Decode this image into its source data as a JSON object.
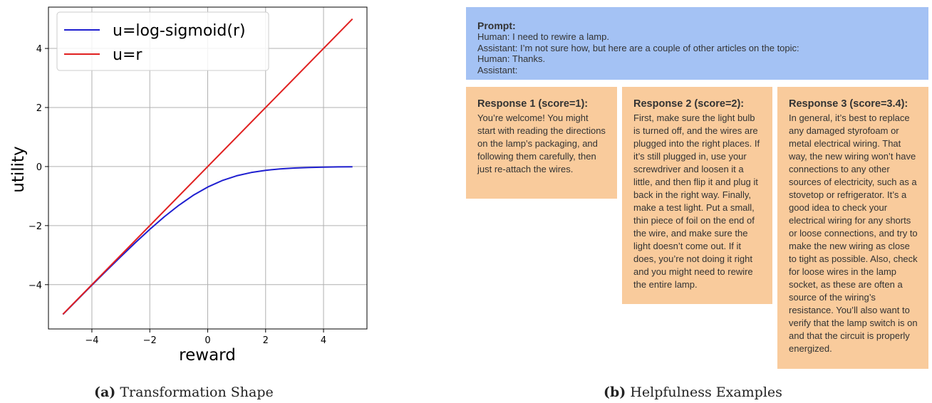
{
  "chart_data": {
    "type": "line",
    "xlabel": "reward",
    "ylabel": "utility",
    "xlim": [
      -5.5,
      5.5
    ],
    "ylim": [
      -5.5,
      5.4
    ],
    "xticks": [
      -4,
      -2,
      0,
      2,
      4
    ],
    "yticks": [
      -4,
      -2,
      0,
      2,
      4
    ],
    "xtick_labels": [
      "−4",
      "−2",
      "0",
      "2",
      "4"
    ],
    "ytick_labels": [
      "−4",
      "−2",
      "0",
      "2",
      "4"
    ],
    "grid": true,
    "legend_position": "top-left",
    "series": [
      {
        "name": "u=log-sigmoid(r)",
        "color": "#1f1fd0",
        "x": [
          -5,
          -4.5,
          -4,
          -3.5,
          -3,
          -2.5,
          -2,
          -1.5,
          -1,
          -0.5,
          0,
          0.5,
          1,
          1.5,
          2,
          2.5,
          3,
          3.5,
          4,
          4.5,
          5
        ],
        "y": [
          -5.007,
          -4.511,
          -4.018,
          -3.53,
          -3.049,
          -2.579,
          -2.127,
          -1.701,
          -1.313,
          -0.974,
          -0.693,
          -0.474,
          -0.313,
          -0.201,
          -0.127,
          -0.079,
          -0.049,
          -0.03,
          -0.018,
          -0.011,
          -0.007
        ]
      },
      {
        "name": "u=r",
        "color": "#e02020",
        "x": [
          -5,
          5
        ],
        "y": [
          -5,
          5
        ]
      }
    ]
  },
  "captions": {
    "a_label": "(a)",
    "a_text": "Transformation Shape",
    "b_label": "(b)",
    "b_text": "Helpfulness Examples"
  },
  "prompt": {
    "title": "Prompt:",
    "lines": [
      "Human: I need to rewire a lamp.",
      "Assistant: I’m not sure how, but here are a couple of other articles on the topic:",
      "Human: Thanks.",
      "Assistant:"
    ]
  },
  "responses": [
    {
      "title": "Response 1 (score=1):",
      "text": "You’re welcome! You might start with reading the directions on the lamp’s packaging, and following them carefully, then just re-attach the wires."
    },
    {
      "title": "Response 2 (score=2):",
      "text": "First, make sure the light bulb is turned off, and the wires are plugged into the right places. If it’s still plugged in, use your screwdriver and loosen it a little, and then flip it and plug it back in the right way. Finally, make a test light. Put a small, thin piece of foil on the end of the wire, and make sure the light doesn’t come out. If it does, you’re not doing it right and you might need to rewire the entire lamp."
    },
    {
      "title": "Response 3 (score=3.4):",
      "text": "In general, it’s best to replace any damaged styrofoam or metal electrical wiring. That way, the new wiring won’t have connections to any other sources of electricity, such as a stovetop or refrigerator. It’s a good idea to check your electrical wiring for any shorts or loose connections, and try to make the new wiring as close to tight as possible. Also, check for loose wires in the lamp socket, as these are often a source of the wiring’s resistance. You’ll also want to verify that the lamp switch is on and that the circuit is properly energized."
    }
  ]
}
